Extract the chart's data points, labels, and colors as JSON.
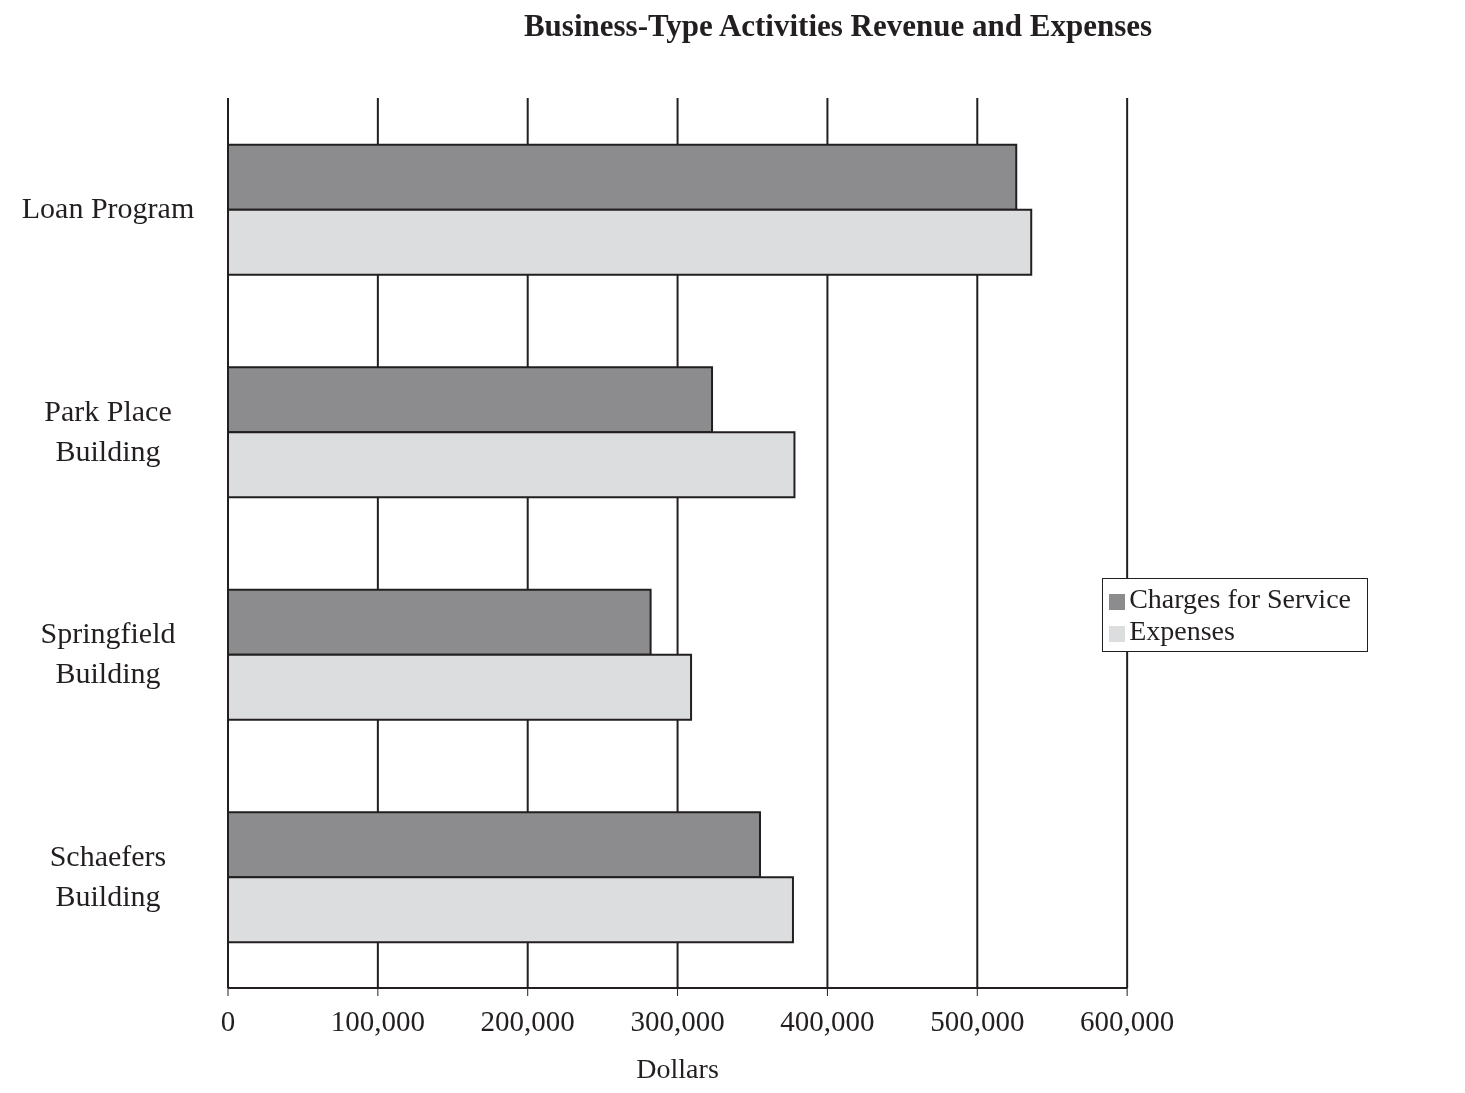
{
  "chart_data": {
    "type": "bar",
    "orientation": "horizontal",
    "title": "Business-Type Activities Revenue and Expenses",
    "xlabel": "Dollars",
    "categories": [
      "Loan Program",
      "Park Place Building",
      "Springfield Building",
      "Schaefers Building"
    ],
    "series": [
      {
        "name": "Charges for Service",
        "color": "#8c8c8e",
        "values": [
          526000,
          323000,
          282000,
          355000
        ]
      },
      {
        "name": "Expenses",
        "color": "#dcdddf",
        "values": [
          536000,
          378000,
          309000,
          377000
        ]
      }
    ],
    "xlim": [
      0,
      600000
    ],
    "xticks": [
      0,
      {
        "value": 100000,
        "label": "100,000"
      },
      {
        "value": 200000,
        "label": "200,000"
      },
      {
        "value": 300000,
        "label": "300,000"
      },
      {
        "value": 400000,
        "label": "400,000"
      },
      {
        "value": 500000,
        "label": "500,000"
      },
      {
        "value": 600000,
        "label": "600,000"
      }
    ],
    "grid": "x",
    "legend": "right"
  }
}
